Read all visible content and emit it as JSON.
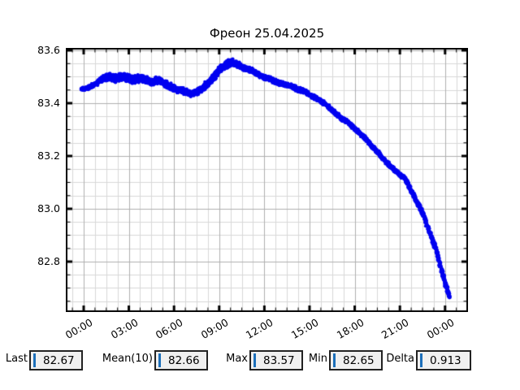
{
  "title": "Фреон 25.04.2025",
  "colors": {
    "line": "#0000f0",
    "grid_minor": "#d8d8d8",
    "grid_major": "#b0b0b0",
    "axis": "#000000",
    "caret": "#1c6fba",
    "field_bg": "#f0f0f0"
  },
  "chart_data": {
    "type": "scatter",
    "title": "Фреон 25.04.2025",
    "xlabel": "",
    "ylabel": "",
    "legend": null,
    "grid": true,
    "ylim": [
      82.612,
      83.606
    ],
    "xlim_hours": [
      -1.19,
      25.47
    ],
    "x_major_step_hours": 3,
    "x_minor_step_hours": 0.75,
    "y_major_step": 0.2,
    "y_minor_step": 0.05,
    "xticks": [
      {
        "label": "00:00",
        "hour": 0
      },
      {
        "label": "03:00",
        "hour": 3
      },
      {
        "label": "06:00",
        "hour": 6
      },
      {
        "label": "09:00",
        "hour": 9
      },
      {
        "label": "12:00",
        "hour": 12
      },
      {
        "label": "15:00",
        "hour": 15
      },
      {
        "label": "18:00",
        "hour": 18
      },
      {
        "label": "21:00",
        "hour": 21
      },
      {
        "label": "00:00",
        "hour": 24
      }
    ],
    "yticks": [
      {
        "label": "83.6",
        "value": 83.6
      },
      {
        "label": "83.4",
        "value": 83.4
      },
      {
        "label": "83.2",
        "value": 83.2
      },
      {
        "label": "83.0",
        "value": 83.0
      },
      {
        "label": "82.8",
        "value": 82.8
      }
    ],
    "series_name": "Фреон",
    "points_format": [
      "hour",
      "value",
      "noise_halfwidth"
    ],
    "points": [
      [
        -0.15,
        83.452,
        0.006
      ],
      [
        0.3,
        83.458,
        0.007
      ],
      [
        0.7,
        83.47,
        0.008
      ],
      [
        1.1,
        83.487,
        0.011
      ],
      [
        1.5,
        83.499,
        0.014
      ],
      [
        1.8,
        83.5,
        0.015
      ],
      [
        2.1,
        83.493,
        0.016
      ],
      [
        2.4,
        83.497,
        0.016
      ],
      [
        2.7,
        83.5,
        0.015
      ],
      [
        3.0,
        83.494,
        0.016
      ],
      [
        3.3,
        83.49,
        0.016
      ],
      [
        3.6,
        83.493,
        0.015
      ],
      [
        3.9,
        83.492,
        0.015
      ],
      [
        4.2,
        83.489,
        0.014
      ],
      [
        4.5,
        83.478,
        0.013
      ],
      [
        4.8,
        83.488,
        0.013
      ],
      [
        5.1,
        83.483,
        0.013
      ],
      [
        5.4,
        83.474,
        0.013
      ],
      [
        5.7,
        83.465,
        0.013
      ],
      [
        6.0,
        83.457,
        0.013
      ],
      [
        6.3,
        83.45,
        0.013
      ],
      [
        6.6,
        83.446,
        0.012
      ],
      [
        6.9,
        83.441,
        0.012
      ],
      [
        7.2,
        83.437,
        0.012
      ],
      [
        7.5,
        83.441,
        0.012
      ],
      [
        7.8,
        83.452,
        0.013
      ],
      [
        8.1,
        83.468,
        0.014
      ],
      [
        8.4,
        83.484,
        0.014
      ],
      [
        8.7,
        83.503,
        0.015
      ],
      [
        9.0,
        83.524,
        0.016
      ],
      [
        9.3,
        83.541,
        0.016
      ],
      [
        9.6,
        83.551,
        0.016
      ],
      [
        9.9,
        83.554,
        0.015
      ],
      [
        10.2,
        83.548,
        0.013
      ],
      [
        10.5,
        83.537,
        0.012
      ],
      [
        10.8,
        83.531,
        0.011
      ],
      [
        11.2,
        83.522,
        0.01
      ],
      [
        11.6,
        83.508,
        0.01
      ],
      [
        12.0,
        83.498,
        0.009
      ],
      [
        12.4,
        83.492,
        0.009
      ],
      [
        12.8,
        83.48,
        0.009
      ],
      [
        13.2,
        83.472,
        0.009
      ],
      [
        13.7,
        83.466,
        0.009
      ],
      [
        14.2,
        83.453,
        0.009
      ],
      [
        14.7,
        83.444,
        0.009
      ],
      [
        15.0,
        83.43,
        0.008
      ],
      [
        15.5,
        83.417,
        0.008
      ],
      [
        16.0,
        83.398,
        0.008
      ],
      [
        16.6,
        83.368,
        0.008
      ],
      [
        17.1,
        83.343,
        0.008
      ],
      [
        17.6,
        83.325,
        0.008
      ],
      [
        18.1,
        83.299,
        0.008
      ],
      [
        18.6,
        83.272,
        0.008
      ],
      [
        19.1,
        83.24,
        0.008
      ],
      [
        19.6,
        83.208,
        0.008
      ],
      [
        20.1,
        83.177,
        0.008
      ],
      [
        20.6,
        83.149,
        0.008
      ],
      [
        21.0,
        83.128,
        0.008
      ],
      [
        21.3,
        83.117,
        0.008
      ],
      [
        21.5,
        83.098,
        0.008
      ],
      [
        22.0,
        83.04,
        0.008
      ],
      [
        22.5,
        82.985,
        0.009
      ],
      [
        23.0,
        82.908,
        0.009
      ],
      [
        23.4,
        82.845,
        0.009
      ],
      [
        23.85,
        82.75,
        0.009
      ],
      [
        24.1,
        82.697,
        0.01
      ],
      [
        24.3,
        82.666,
        0.011
      ]
    ]
  },
  "stats": {
    "items": [
      {
        "label": "Last",
        "value": "82.67"
      },
      {
        "label": "Mean(10)",
        "value": "82.66"
      },
      {
        "label": "Max",
        "value": "83.57"
      },
      {
        "label": "Min",
        "value": "82.65"
      },
      {
        "label": "Delta",
        "value": "0.913"
      }
    ]
  }
}
